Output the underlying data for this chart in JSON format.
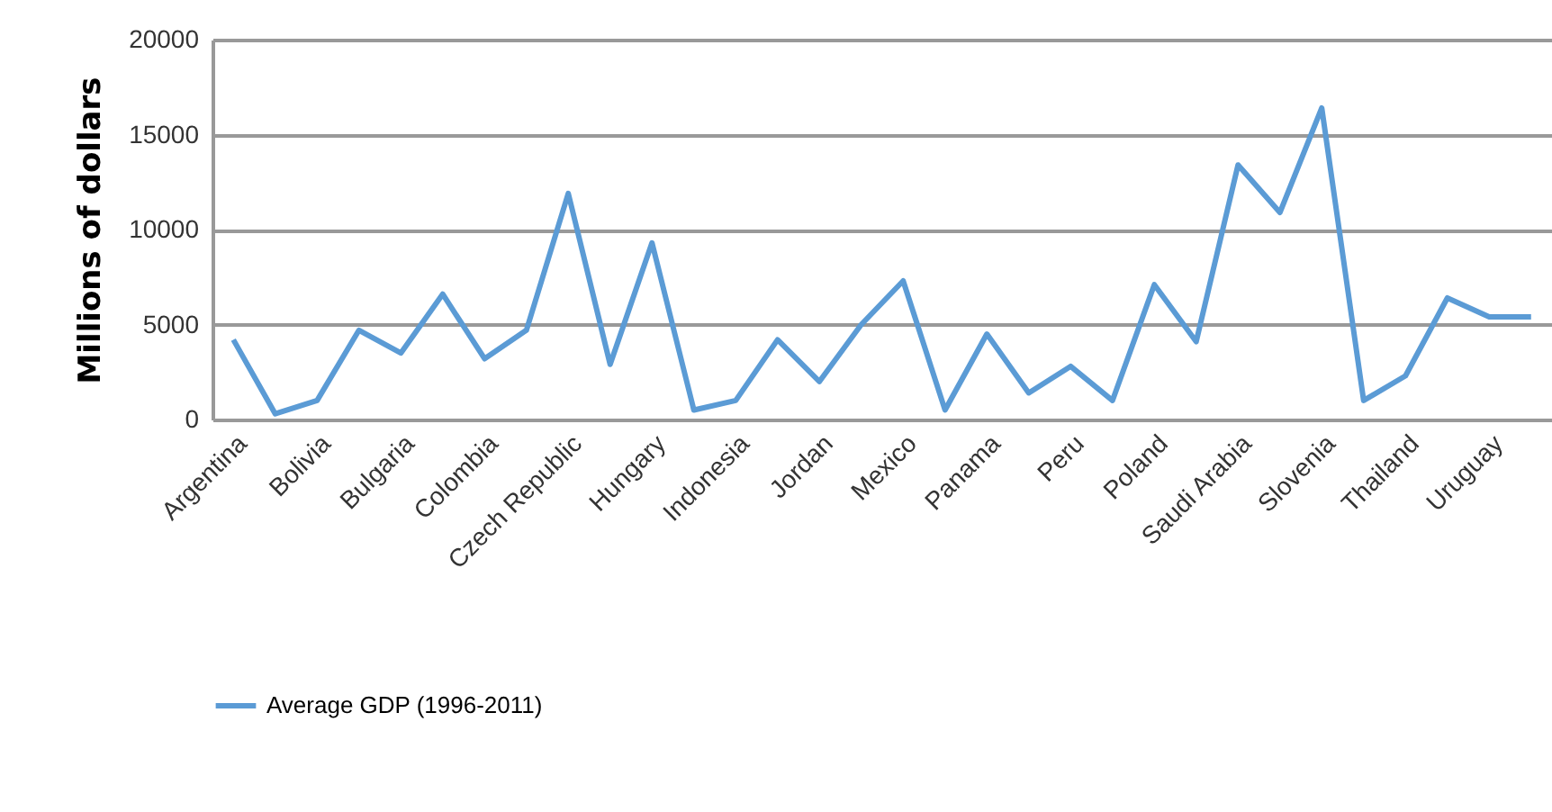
{
  "chart_data": {
    "type": "line",
    "ylabel": "Millions  of dollars",
    "categories": [
      "Argentina",
      null,
      "Bolivia",
      null,
      "Bulgaria",
      null,
      "Colombia",
      null,
      "Czech Republic",
      null,
      "Hungary",
      null,
      "Indonesia",
      null,
      "Jordan",
      null,
      "Mexico",
      null,
      "Panama",
      null,
      "Peru",
      null,
      "Poland",
      null,
      "Saudi Arabia",
      null,
      "Slovenia",
      null,
      "Thailand",
      null,
      "Uruguay",
      null
    ],
    "series": [
      {
        "name": "Average GDP (1996-2011)",
        "color": "#5b9bd5",
        "values": [
          4200,
          300,
          1000,
          4700,
          3500,
          6600,
          3200,
          4700,
          11900,
          2900,
          9300,
          500,
          1000,
          4200,
          2000,
          5000,
          7300,
          500,
          4500,
          1400,
          2800,
          1000,
          7100,
          4100,
          13400,
          10900,
          16400,
          1000,
          2300,
          6400,
          5400,
          5400
        ]
      }
    ],
    "ylim": [
      0,
      20000
    ],
    "yticks": [
      0,
      5000,
      10000,
      15000,
      20000
    ],
    "grid": "y",
    "legend": "bottom",
    "line_style": "solid",
    "marker": "none"
  }
}
